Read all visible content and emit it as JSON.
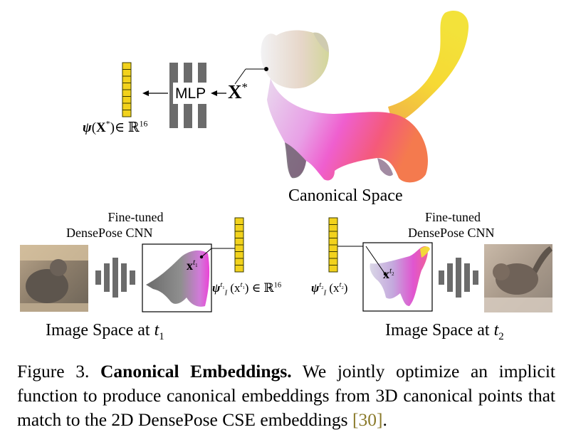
{
  "figure": {
    "canonical_label": "Canonical Space",
    "mlp_label": "MLP",
    "x_star_symbol": "X",
    "x_star_sup": "*",
    "psi_canonical": {
      "psi": "ψ",
      "arg_open": "(",
      "arg_X": "X",
      "arg_sup": "*",
      "arg_close": ")∈ ℝ",
      "dim": "16"
    },
    "left_panel": {
      "network_label_line1": "Fine-tuned",
      "network_label_line2": "DensePose CNN",
      "point_symbol": "x",
      "point_sup": "t",
      "point_sup_sub": "1",
      "psi_expr": {
        "psi": "ψ",
        "psi_sub": "I",
        "psi_sup": "t",
        "psi_sup_sub": "1",
        "arg": "(x",
        "arg_sup": "t",
        "arg_sup_sub": "1",
        "tail": ") ∈ ℝ",
        "dim": "16"
      },
      "space_label": "Image Space at ",
      "space_t": "t",
      "space_sub": "1"
    },
    "right_panel": {
      "network_label_line1": "Fine-tuned",
      "network_label_line2": "DensePose CNN",
      "point_symbol": "x",
      "point_sup": "t",
      "point_sup_sub": "2",
      "psi_expr": {
        "psi": "ψ",
        "psi_sub": "I",
        "psi_sup": "t",
        "psi_sup_sub": "2",
        "arg": "(x",
        "arg_sup": "t",
        "arg_sup_sub": "2",
        "tail": ")"
      },
      "space_label": "Image Space at ",
      "space_t": "t",
      "space_sub": "2"
    }
  },
  "caption": {
    "figure_number": "Figure 3.",
    "title": "Canonical Embeddings.",
    "body": "We jointly optimize an implicit function to produce canonical embeddings from 3D canonical points that match to the 2D DensePose CSE embeddings ",
    "cite_open": "[",
    "cite_number": "30",
    "cite_close": "]",
    "end": "."
  },
  "colors": {
    "embedding_cell": "#f2d21c",
    "embedding_border": "#3a3a00",
    "network_bar": "#6b6b6b",
    "citation": "#8a7a2a"
  }
}
